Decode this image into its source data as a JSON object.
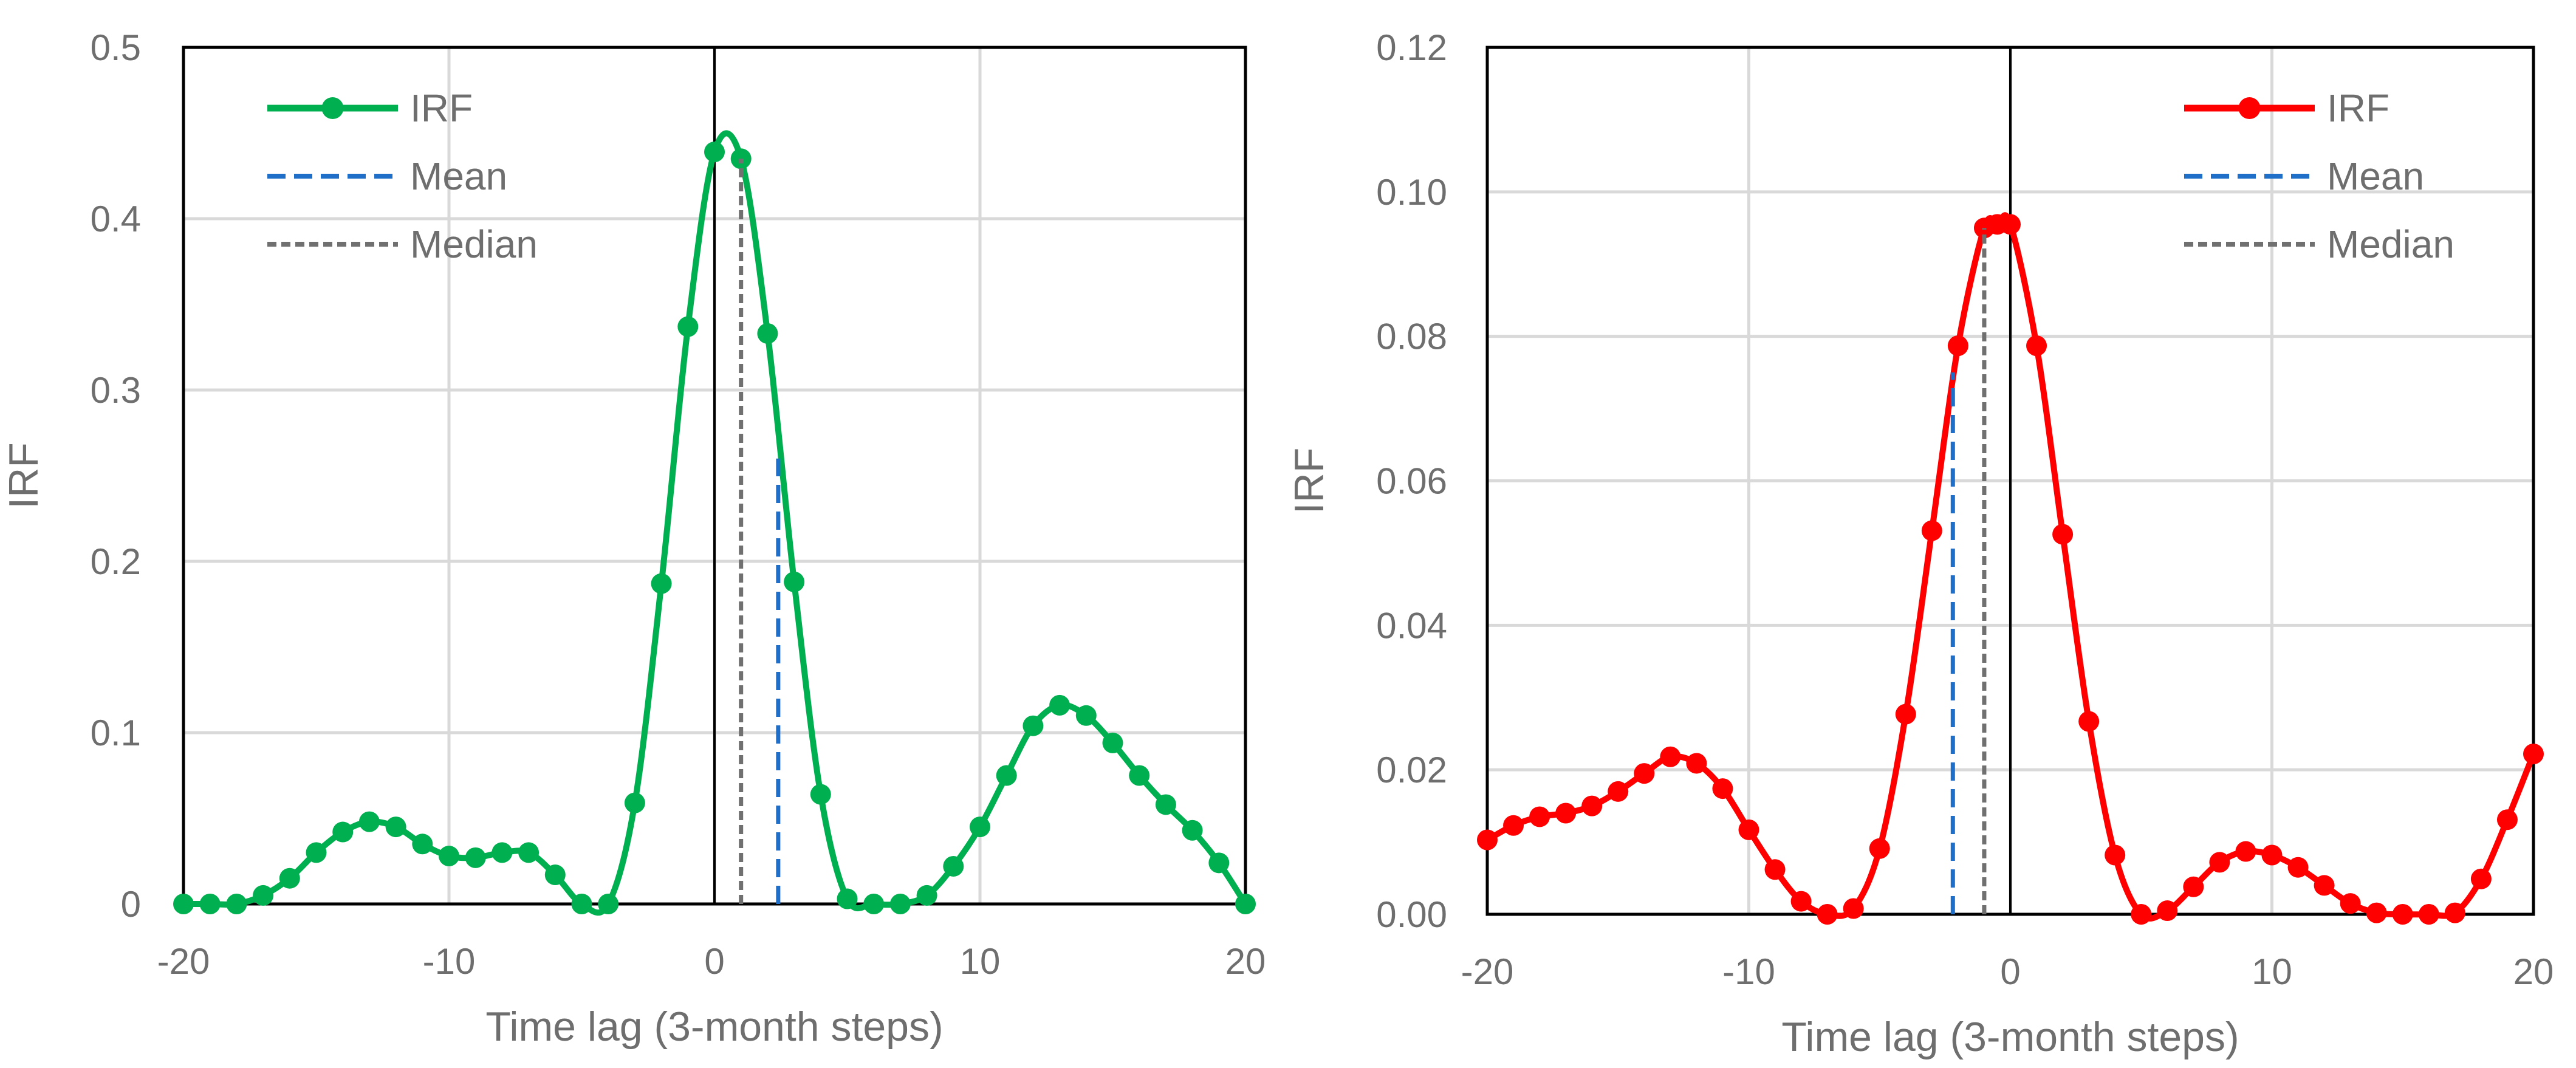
{
  "chart_data": [
    {
      "type": "line",
      "title": "",
      "xlabel": "Time lag (3-month steps)",
      "ylabel": "IRF",
      "xlim": [
        -20,
        20
      ],
      "ylim": [
        0,
        0.5
      ],
      "xticks": [
        -20,
        -10,
        0,
        10,
        20
      ],
      "xtick_labels": [
        "-20",
        "-10",
        "0",
        "10",
        "20"
      ],
      "yticks": [
        0,
        0.1,
        0.2,
        0.3,
        0.4,
        0.5
      ],
      "ytick_labels": [
        "0",
        "0.1",
        "0.2",
        "0.3",
        "0.4",
        "0.5"
      ],
      "grid": true,
      "legend_position": "top-left",
      "legend": [
        "IRF",
        "Mean",
        "Median"
      ],
      "series": [
        {
          "name": "IRF",
          "color": "#00b050",
          "marker": "circle",
          "x": [
            -20,
            -19,
            -18,
            -17,
            -16,
            -15,
            -14,
            -13,
            -12,
            -11,
            -10,
            -9,
            -8,
            -7,
            -6,
            -5,
            -4,
            -3,
            -2,
            -1,
            0,
            1,
            2,
            3,
            4,
            5,
            6,
            7,
            8,
            9,
            10,
            11,
            12,
            13,
            14,
            15,
            16,
            17,
            18,
            19,
            20
          ],
          "y": [
            0,
            0,
            0,
            0.005,
            0.015,
            0.03,
            0.042,
            0.048,
            0.045,
            0.035,
            0.028,
            0.027,
            0.03,
            0.03,
            0.017,
            0,
            0,
            0.059,
            0.187,
            0.337,
            0.439,
            0.435,
            0.333,
            0.188,
            0.064,
            0.003,
            0,
            0,
            0.005,
            0.022,
            0.045,
            0.075,
            0.104,
            0.116,
            0.11,
            0.094,
            0.075,
            0.058,
            0.043,
            0.024,
            0
          ]
        }
      ],
      "vlines": [
        {
          "name": "Mean",
          "x": 2.4,
          "y": 0.26,
          "color": "#1f6fc8",
          "style": "dashed"
        },
        {
          "name": "Median",
          "x": 1.0,
          "y": 0.435,
          "color": "#707070",
          "style": "dashed"
        }
      ],
      "zero_line_color": "#000000"
    },
    {
      "type": "line",
      "title": "",
      "xlabel": "Time lag (3-month steps)",
      "ylabel": "IRF",
      "xlim": [
        -20,
        20
      ],
      "ylim": [
        0,
        0.12
      ],
      "xticks": [
        -20,
        -10,
        0,
        10,
        20
      ],
      "xtick_labels": [
        "-20",
        "-10",
        "0",
        "10",
        "20"
      ],
      "yticks": [
        0,
        0.02,
        0.04,
        0.06,
        0.08,
        0.1,
        0.12
      ],
      "ytick_labels": [
        "0.00",
        "0.02",
        "0.04",
        "0.06",
        "0.08",
        "0.10",
        "0.12"
      ],
      "grid": true,
      "legend_position": "top-right",
      "legend": [
        "IRF",
        "Mean",
        "Median"
      ],
      "series": [
        {
          "name": "IRF",
          "color": "#ff0000",
          "marker": "circle",
          "x": [
            -20,
            -19,
            -18,
            -17,
            -16,
            -15,
            -14,
            -13,
            -12,
            -11,
            -10,
            -9,
            -8,
            -7,
            -6,
            -5,
            -4,
            -3,
            -2,
            -1,
            -0.5,
            0,
            1,
            2,
            3,
            4,
            5,
            6,
            7,
            8,
            9,
            10,
            11,
            12,
            13,
            14,
            15,
            16,
            17,
            18,
            19,
            20
          ],
          "y": [
            0.0103,
            0.0123,
            0.0135,
            0.014,
            0.015,
            0.017,
            0.0195,
            0.0218,
            0.0209,
            0.0174,
            0.0117,
            0.0062,
            0.0018,
            0,
            0.0008,
            0.0091,
            0.0277,
            0.0531,
            0.0787,
            0.095,
            0.0955,
            0.0955,
            0.0787,
            0.0526,
            0.0267,
            0.0082,
            0,
            0.0005,
            0.0038,
            0.0072,
            0.0087,
            0.0082,
            0.0065,
            0.004,
            0.0015,
            0.0002,
            0,
            0,
            0.0002,
            0.0049,
            0.0131,
            0.0222
          ]
        }
      ],
      "vlines": [
        {
          "name": "Mean",
          "x": -2.2,
          "y": 0.075,
          "color": "#1f6fc8",
          "style": "dashed"
        },
        {
          "name": "Median",
          "x": -1.0,
          "y": 0.095,
          "color": "#707070",
          "style": "dashed"
        }
      ],
      "zero_line_color": "#000000"
    }
  ]
}
